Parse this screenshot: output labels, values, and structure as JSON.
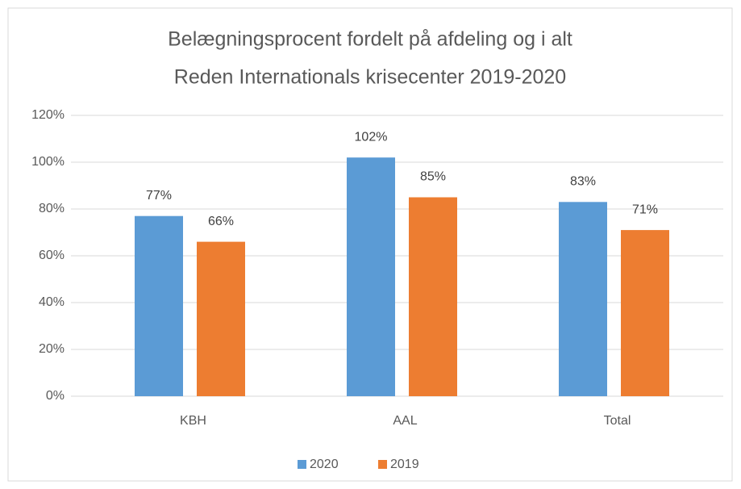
{
  "chart_data": {
    "type": "bar",
    "title": "Belægningsprocent fordelt på afdeling og i alt",
    "subtitle": "Reden Internationals krisecenter 2019-2020",
    "categories": [
      "KBH",
      "AAL",
      "Total"
    ],
    "series": [
      {
        "name": "2020",
        "color": "#5b9bd5",
        "values": [
          77,
          102,
          83
        ],
        "value_labels": [
          "77%",
          "102%",
          "83%"
        ]
      },
      {
        "name": "2019",
        "color": "#ed7d31",
        "values": [
          66,
          85,
          71
        ],
        "value_labels": [
          "66%",
          "85%",
          "71%"
        ]
      }
    ],
    "ylim": [
      0,
      120
    ],
    "yticks": [
      {
        "value": 0,
        "label": "0%"
      },
      {
        "value": 20,
        "label": "20%"
      },
      {
        "value": 40,
        "label": "40%"
      },
      {
        "value": 60,
        "label": "60%"
      },
      {
        "value": 80,
        "label": "80%"
      },
      {
        "value": 100,
        "label": "100%"
      },
      {
        "value": 120,
        "label": "120%"
      }
    ],
    "grid": true,
    "legend": "bottom"
  }
}
